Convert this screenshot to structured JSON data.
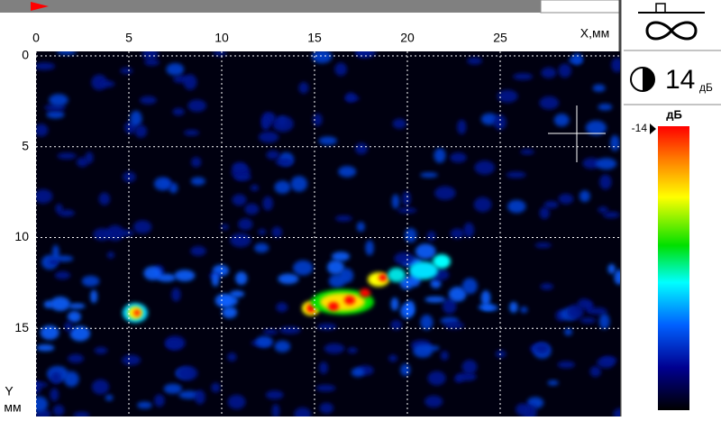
{
  "plot": {
    "x_axis": {
      "label": "X,мм",
      "ticks": [
        0,
        5,
        10,
        15,
        20,
        25
      ]
    },
    "y_axis": {
      "label_lines": [
        "Y",
        "мм"
      ],
      "ticks": [
        0,
        5,
        10,
        15
      ]
    }
  },
  "gain": {
    "value": 14,
    "unit": "дБ"
  },
  "color_scale": {
    "unit": "дБ",
    "top_label": -14
  }
}
